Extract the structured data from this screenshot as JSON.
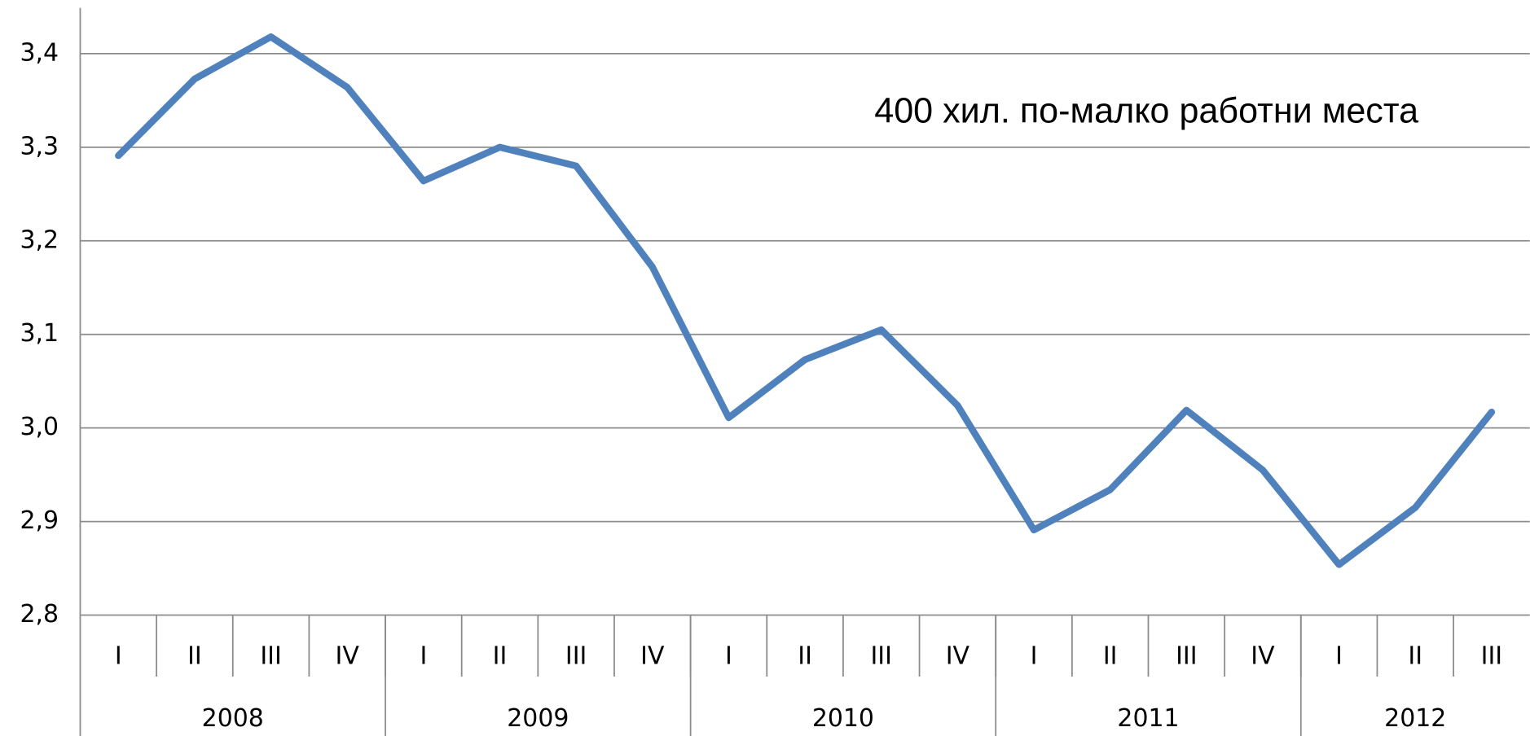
{
  "chart_data": {
    "type": "line",
    "annotation": "400 хил. по-малко работни места",
    "categories": [
      "I",
      "II",
      "III",
      "IV",
      "I",
      "II",
      "III",
      "IV",
      "I",
      "II",
      "III",
      "IV",
      "I",
      "II",
      "III",
      "IV",
      "I",
      "II",
      "III"
    ],
    "year_groups": [
      {
        "label": "2008",
        "count": 4
      },
      {
        "label": "2009",
        "count": 4
      },
      {
        "label": "2010",
        "count": 4
      },
      {
        "label": "2011",
        "count": 4
      },
      {
        "label": "2012",
        "count": 3
      }
    ],
    "series": [
      {
        "color": "#4f81bd",
        "values": [
          3.291,
          3.373,
          3.418,
          3.364,
          3.264,
          3.3,
          3.28,
          3.172,
          3.011,
          3.073,
          3.105,
          3.024,
          2.891,
          2.934,
          3.019,
          2.955,
          2.854,
          2.915,
          3.017
        ]
      }
    ],
    "ylim": [
      2.8,
      3.449
    ],
    "yticks": [
      {
        "value": 2.8,
        "label": "2,8"
      },
      {
        "value": 2.9,
        "label": "2,9"
      },
      {
        "value": 3.0,
        "label": "3,0"
      },
      {
        "value": 3.1,
        "label": "3,1"
      },
      {
        "value": 3.2,
        "label": "3,2"
      },
      {
        "value": 3.3,
        "label": "3,3"
      },
      {
        "value": 3.4,
        "label": "3,4"
      }
    ],
    "grid": true
  }
}
